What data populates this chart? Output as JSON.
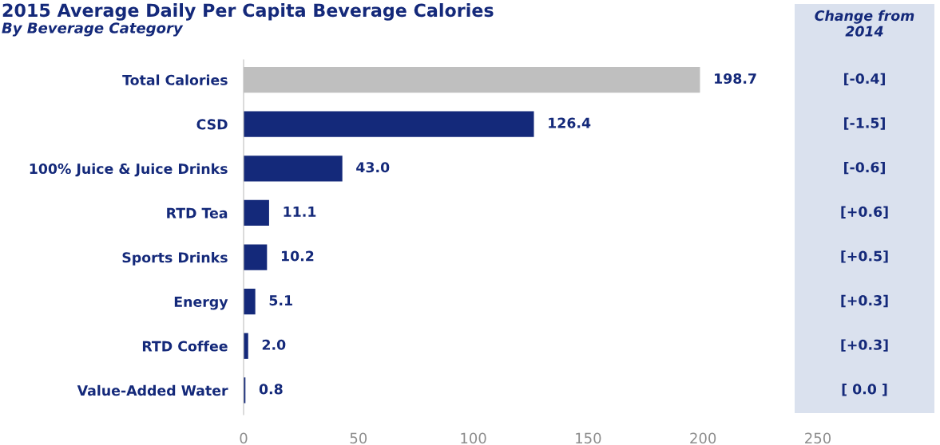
{
  "chart_data": [
    {
      "type": "bar",
      "orientation": "horizontal",
      "title": "2015 Average Daily Per Capita Beverage Calories",
      "subtitle": "By Beverage Category",
      "categories": [
        "Total Calories",
        "CSD",
        "100% Juice & Juice Drinks",
        "RTD Tea",
        "Sports Drinks",
        "Energy",
        "RTD Coffee",
        "Value-Added Water"
      ],
      "values": [
        198.7,
        126.4,
        43.0,
        11.1,
        10.2,
        5.1,
        2.0,
        0.8
      ],
      "colors": [
        "#bfbfbf",
        "#14297a",
        "#14297a",
        "#14297a",
        "#14297a",
        "#14297a",
        "#14297a",
        "#14297a"
      ],
      "value_labels": [
        "198.7",
        "126.4",
        "43.0",
        "11.1",
        "10.2",
        "5.1",
        "2.0",
        "0.8"
      ],
      "xlim": [
        0,
        250
      ],
      "xticks": [
        0,
        50,
        100,
        150,
        200,
        250
      ],
      "grid": false
    },
    {
      "type": "other",
      "title": "Change from\n2014",
      "annotations": [
        "[-0.4]",
        "[-1.5]",
        "[-0.6]",
        "[+0.6]",
        "[+0.5]",
        "[+0.3]",
        "[+0.3]",
        "[ 0.0 ]"
      ]
    }
  ]
}
